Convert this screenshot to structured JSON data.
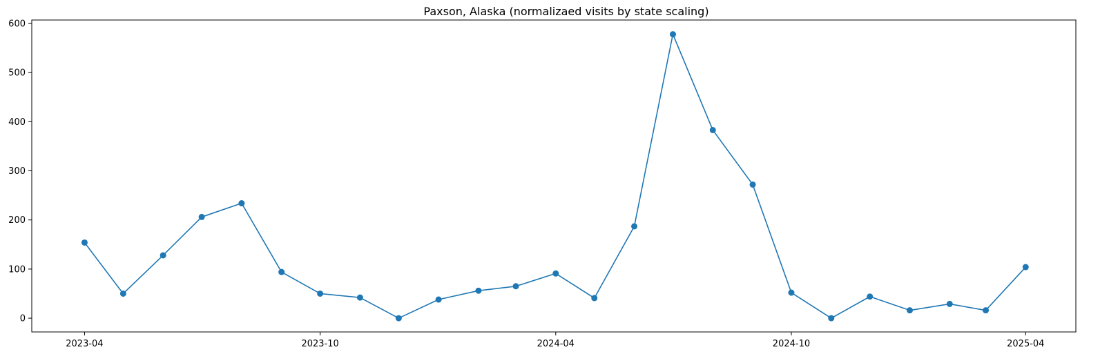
{
  "chart_data": {
    "type": "line",
    "title": "Paxson, Alaska (normalizaed visits by state scaling)",
    "xlabel": "",
    "ylabel": "",
    "x_ticks": [
      "2023-04",
      "2023-10",
      "2024-04",
      "2024-10",
      "2025-04"
    ],
    "y_ticks": [
      0,
      100,
      200,
      300,
      400,
      500,
      600
    ],
    "ylim": [
      -28,
      607
    ],
    "xlim": [
      "2023-02-19",
      "2025-05-10"
    ],
    "grid": false,
    "legend": "none",
    "series": [
      {
        "color": "#1f77b4",
        "marker": "circle",
        "points": [
          {
            "x": "2023-04-01",
            "y": 154
          },
          {
            "x": "2023-05-01",
            "y": 50
          },
          {
            "x": "2023-06-01",
            "y": 128
          },
          {
            "x": "2023-07-01",
            "y": 206
          },
          {
            "x": "2023-08-01",
            "y": 234
          },
          {
            "x": "2023-09-01",
            "y": 94
          },
          {
            "x": "2023-10-01",
            "y": 50
          },
          {
            "x": "2023-11-01",
            "y": 42
          },
          {
            "x": "2023-12-01",
            "y": 0
          },
          {
            "x": "2024-01-01",
            "y": 38
          },
          {
            "x": "2024-02-01",
            "y": 56
          },
          {
            "x": "2024-03-01",
            "y": 65
          },
          {
            "x": "2024-04-01",
            "y": 91
          },
          {
            "x": "2024-05-01",
            "y": 41
          },
          {
            "x": "2024-06-01",
            "y": 187
          },
          {
            "x": "2024-07-01",
            "y": 578
          },
          {
            "x": "2024-08-01",
            "y": 383
          },
          {
            "x": "2024-09-01",
            "y": 272
          },
          {
            "x": "2024-10-01",
            "y": 52
          },
          {
            "x": "2024-11-01",
            "y": 0
          },
          {
            "x": "2024-12-01",
            "y": 44
          },
          {
            "x": "2025-01-01",
            "y": 16
          },
          {
            "x": "2025-02-01",
            "y": 29
          },
          {
            "x": "2025-03-01",
            "y": 16
          },
          {
            "x": "2025-04-01",
            "y": 104
          }
        ]
      }
    ]
  }
}
